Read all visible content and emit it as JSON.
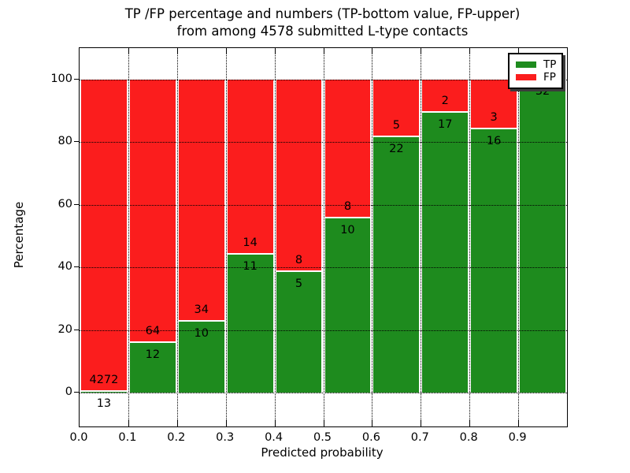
{
  "title": {
    "line1": "TP /FP percentage and numbers (TP-bottom value, FP-upper)",
    "line2": "from among 4578 submitted L-type contacts"
  },
  "axes": {
    "ylabel": "Percentage",
    "xlabel": "Predicted probability",
    "yticks": [
      0,
      20,
      40,
      60,
      80,
      100
    ],
    "xticks": [
      "0.0",
      "0.1",
      "0.2",
      "0.3",
      "0.4",
      "0.5",
      "0.6",
      "0.7",
      "0.8",
      "0.9"
    ]
  },
  "legend": {
    "items": [
      {
        "label": "TP",
        "color": "#1e8b1e"
      },
      {
        "label": "FP",
        "color": "#fb1d1d"
      }
    ]
  },
  "colors": {
    "tp": "#1e8b1e",
    "fp": "#fb1d1d",
    "frame": "#000000",
    "background": "#ffffff"
  },
  "chart_data": {
    "type": "bar",
    "stacked": true,
    "unit": "percent",
    "title": "TP /FP percentage and numbers (TP-bottom value, FP-upper) from among 4578 submitted L-type contacts",
    "xlabel": "Predicted probability",
    "ylabel": "Percentage",
    "ylim": [
      -11,
      110
    ],
    "grid": true,
    "legend_position": "upper right",
    "total_contacts": 4578,
    "bins": [
      "0.0-0.1",
      "0.1-0.2",
      "0.2-0.3",
      "0.3-0.4",
      "0.4-0.5",
      "0.5-0.6",
      "0.6-0.7",
      "0.7-0.8",
      "0.8-0.9",
      "0.9-1.0"
    ],
    "series": [
      {
        "name": "TP",
        "counts": [
          13,
          12,
          10,
          11,
          5,
          10,
          22,
          17,
          16,
          32
        ],
        "pct": [
          0.3,
          15.8,
          22.7,
          44.0,
          38.5,
          55.6,
          81.5,
          89.5,
          84.2,
          100.0
        ]
      },
      {
        "name": "FP",
        "counts": [
          4272,
          64,
          34,
          14,
          8,
          8,
          5,
          2,
          3,
          null
        ],
        "pct": [
          99.7,
          84.2,
          77.3,
          56.0,
          61.5,
          44.4,
          18.5,
          10.5,
          15.8,
          0.0
        ]
      }
    ],
    "bar_labels": {
      "fp": [
        "4272",
        "64",
        "34",
        "14",
        "8",
        "8",
        "5",
        "2",
        "3",
        null
      ],
      "tp": [
        "13",
        "12",
        "10",
        "11",
        "5",
        "10",
        "22",
        "17",
        "16",
        "32"
      ]
    }
  }
}
